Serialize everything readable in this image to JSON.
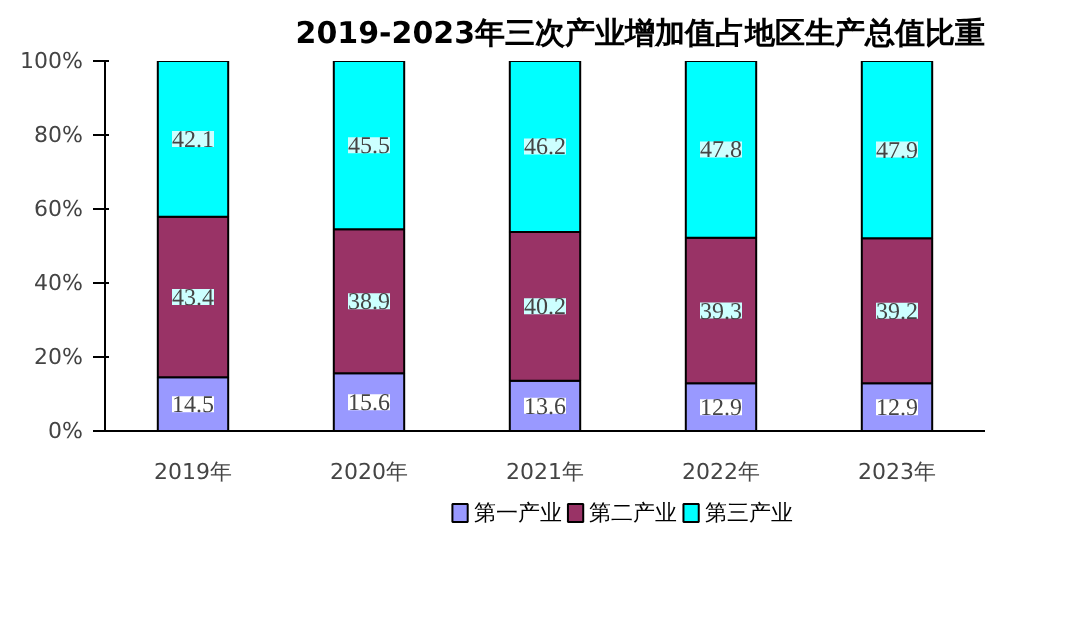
{
  "chart_data": {
    "type": "bar",
    "stacked": true,
    "title": "2019-2023年三次产业增加值占地区生产总值比重",
    "categories": [
      "2019年",
      "2020年",
      "2021年",
      "2022年",
      "2023年"
    ],
    "series": [
      {
        "name": "第一产业",
        "color": "#9999ff",
        "values": [
          14.5,
          15.6,
          13.6,
          12.9,
          12.9
        ]
      },
      {
        "name": "第二产业",
        "color": "#993366",
        "values": [
          43.4,
          38.9,
          40.2,
          39.3,
          39.2
        ]
      },
      {
        "name": "第三产业",
        "color": "#00ffff",
        "values": [
          42.1,
          45.5,
          46.2,
          47.8,
          47.9
        ]
      }
    ],
    "ylim": [
      0,
      100
    ],
    "yticks": [
      {
        "value": 0,
        "label": "0%"
      },
      {
        "value": 20,
        "label": "20%"
      },
      {
        "value": 40,
        "label": "40%"
      },
      {
        "value": 60,
        "label": "60%"
      },
      {
        "value": 80,
        "label": "80%"
      },
      {
        "value": 100,
        "label": "100%"
      }
    ],
    "data_labels": true,
    "legend": "bottom"
  }
}
